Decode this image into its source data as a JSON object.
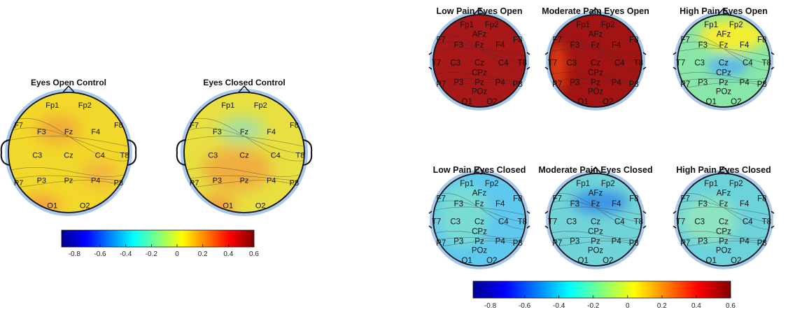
{
  "colorbar_scale": [
    "#00008f",
    "#0000ff",
    "#0080ff",
    "#00ffff",
    "#80ff80",
    "#ffff00",
    "#ff8000",
    "#ff0000",
    "#800000"
  ],
  "colorbars": [
    {
      "ticks": [
        "-0.8",
        "-0.6",
        "-0.4",
        "-0.2",
        "0",
        "0.2",
        "0.4",
        "0.6"
      ]
    },
    {
      "ticks": [
        "-0.8",
        "-0.6",
        "-0.4",
        "-0.2",
        "0",
        "0.2",
        "0.4",
        "0.6"
      ]
    }
  ],
  "maps": [
    {
      "title": "Eyes Open Control",
      "fill": "#f2d82a",
      "blobs": [
        {
          "color": "#f0a838",
          "label": "F3-Fz"
        },
        {
          "color": "#f3b640",
          "label": "P4"
        },
        {
          "color": "#f39a3c",
          "label": "O1"
        }
      ],
      "electrodes": [
        "Fp1",
        "Fp2",
        "F7",
        "F3",
        "Fz",
        "F4",
        "F8",
        "C3",
        "Cz",
        "C4",
        "T8",
        "P7",
        "P3",
        "Pz",
        "P4",
        "P8",
        "O1",
        "O2"
      ]
    },
    {
      "title": "Eyes Closed Control",
      "fill": "#e8e040",
      "blobs": [
        {
          "color": "#a6e0a0",
          "label": "Fz"
        },
        {
          "color": "#f0ae40",
          "label": "C3-P3"
        },
        {
          "color": "#f29c38",
          "label": "O1"
        }
      ],
      "electrodes": [
        "Fp1",
        "Fp2",
        "F7",
        "F3",
        "Fz",
        "F4",
        "F8",
        "C3",
        "Cz",
        "C4",
        "T8",
        "P7",
        "P3",
        "Pz",
        "P4",
        "P8",
        "O1",
        "O2"
      ]
    },
    {
      "title": "Low Pain Eyes Open",
      "fill": "#a81818",
      "blobs": [],
      "electrodes": [
        "Fp1",
        "Fp2",
        "AFz",
        "F7",
        "F3",
        "Fz",
        "F4",
        "F8",
        "T7",
        "C3",
        "Cz",
        "C4",
        "T8",
        "CPz",
        "P7",
        "P3",
        "Pz",
        "P4",
        "P8",
        "POz",
        "O1",
        "O2"
      ]
    },
    {
      "title": "Moderate Pain Eyes Open",
      "fill": "#a21414",
      "blobs": [
        {
          "color": "#e03c10",
          "label": "T7"
        }
      ],
      "electrodes": [
        "Fp1",
        "Fp2",
        "AFz",
        "F7",
        "F3",
        "Fz",
        "F4",
        "F8",
        "T7",
        "C3",
        "Cz",
        "C4",
        "T8",
        "CPz",
        "P7",
        "P3",
        "Pz",
        "P4",
        "P8",
        "POz",
        "O1",
        "O2"
      ]
    },
    {
      "title": "High Pain Eyes Open",
      "fill": "#88e6a8",
      "blobs": [
        {
          "color": "#f4ee30",
          "label": "AFz"
        },
        {
          "color": "#58b6ec",
          "label": "CPz"
        }
      ],
      "electrodes": [
        "Fp1",
        "Fp2",
        "AFz",
        "F7",
        "F3",
        "Fz",
        "F4",
        "F8",
        "T7",
        "C3",
        "Cz",
        "C4",
        "T8",
        "CPz",
        "P7",
        "P3",
        "Pz",
        "P4",
        "P8",
        "POz",
        "O1",
        "O2"
      ]
    },
    {
      "title": "Low Pain Eyes Closed",
      "fill": "#5ec8ee",
      "blobs": [
        {
          "color": "#78dcd4",
          "label": "C3"
        }
      ],
      "electrodes": [
        "Fp1",
        "Fp2",
        "AFz",
        "F7",
        "F3",
        "Fz",
        "F4",
        "F8",
        "T7",
        "C3",
        "Cz",
        "C4",
        "T8",
        "CPz",
        "P7",
        "P3",
        "Pz",
        "P4",
        "P8",
        "POz",
        "O1",
        "O2"
      ]
    },
    {
      "title": "Moderate Pain Eyes Closed",
      "fill": "#70d4d8",
      "blobs": [
        {
          "color": "#3e96e6",
          "label": "AFz"
        }
      ],
      "electrodes": [
        "Fp1",
        "Fp2",
        "AFz",
        "F7",
        "F3",
        "Fz",
        "F4",
        "F8",
        "T7",
        "C3",
        "Cz",
        "C4",
        "T8",
        "CPz",
        "P7",
        "P3",
        "Pz",
        "P4",
        "P8",
        "POz",
        "O1",
        "O2"
      ]
    },
    {
      "title": "High Pain Eyes Closed",
      "fill": "#6cd2dc",
      "blobs": [
        {
          "color": "#8ee4c0",
          "label": "C3"
        }
      ],
      "electrodes": [
        "Fp1",
        "Fp2",
        "AFz",
        "F7",
        "F3",
        "Fz",
        "F4",
        "F8",
        "T7",
        "C3",
        "Cz",
        "C4",
        "T8",
        "CPz",
        "P7",
        "P3",
        "Pz",
        "P4",
        "P8",
        "POz",
        "O1",
        "O2"
      ]
    }
  ]
}
